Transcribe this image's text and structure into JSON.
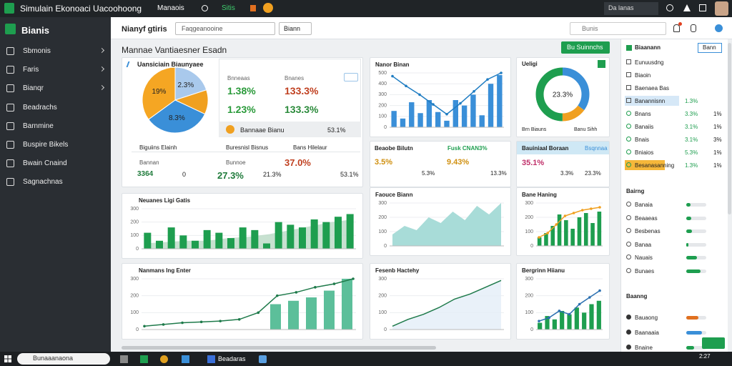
{
  "window": {
    "title": "Simulain Ekonoaci Uacoohoong",
    "tabs": [
      "Manaois",
      "Sitis"
    ],
    "user": "Da lanas"
  },
  "sidebar": {
    "brand": "Bianis",
    "items": [
      "Sbmonis",
      "Faris",
      "Bianqr",
      "Beadrachs",
      "Barnmine",
      "Buspire Bikels",
      "Bwain Cnaind",
      "Sagnachnas"
    ]
  },
  "toolbar": {
    "title": "Nianyf gtiris",
    "dropdown": "Faqgeanooine",
    "filter": "Biann",
    "search": "Bunis"
  },
  "section": {
    "title": "Mannae Vantiaesner Esadn",
    "button": "Bu Suinnchs"
  },
  "summary": {
    "title": "Uansiciain Biaunyaee",
    "pie": {
      "slices": [
        {
          "value": 20,
          "color": "#a9c9ec",
          "label": "2.3%"
        },
        {
          "value": 12,
          "color": "#f0a020"
        },
        {
          "value": 33,
          "color": "#3a8fd8",
          "label": "8.3%"
        },
        {
          "value": 35,
          "color": "#f5a623",
          "label": "19%"
        }
      ]
    },
    "stat_labels": [
      "Bnneaas",
      "Bnanes"
    ],
    "stats": [
      "1.38%",
      "133.3%",
      "1.23%",
      "133.3%"
    ],
    "footer_label": "Bannaae Bianu",
    "footer_value": "53.1%",
    "kpis": [
      {
        "label": "Biguiins Elainh",
        "sub": "Bannan",
        "values": [
          "3364",
          "0"
        ]
      },
      {
        "label": "Buresnisl Bisnus",
        "sub": "Bunnoe",
        "values": [
          "27.3%",
          "21.3%"
        ]
      },
      {
        "label": "Bans Hilelaur",
        "values": [
          "37.0%",
          "53.1%"
        ]
      }
    ]
  },
  "donut": {
    "title": "Ueligi",
    "slices": [
      {
        "value": 35,
        "color": "#3a8fd8"
      },
      {
        "value": 15,
        "color": "#f0a020"
      },
      {
        "value": 50,
        "color": "#1e9e4f"
      }
    ],
    "center": "23.3%",
    "legend": [
      "Brn Biauns",
      "Banu Sihh"
    ]
  },
  "panel4": {
    "title": "Beaobe Bilutn",
    "highlight": "Fusk CNAN3%",
    "values": [
      "3.5%",
      "9.43%",
      "5.3%",
      "13.3%"
    ]
  },
  "panel5": {
    "title": "Bauiniaal Boraan",
    "tag": "Bsqnnaa",
    "values": [
      "35.1%",
      "3.3%",
      "23.3%"
    ]
  },
  "charts": [
    {
      "title": "Nanor Binan",
      "type": "bar_line",
      "color": "#3a8fd8",
      "line_color": "#1e7cc2",
      "ylim": [
        0,
        500
      ],
      "yticks": [
        0,
        100,
        200,
        300,
        400,
        500
      ],
      "values": [
        150,
        80,
        230,
        130,
        250,
        140,
        60,
        250,
        200,
        300,
        110,
        400,
        480
      ],
      "line": [
        470,
        380,
        300,
        210,
        120,
        220,
        330,
        440,
        500
      ]
    },
    {
      "title": "Neuanes Ligi Gatis",
      "type": "bar_area",
      "color": "#1e9e4f",
      "fill": "#b9d9c4",
      "ylim": [
        0,
        300
      ],
      "yticks": [
        0,
        100,
        200,
        300
      ],
      "values": [
        120,
        60,
        160,
        100,
        60,
        140,
        120,
        80,
        160,
        140,
        40,
        200,
        180,
        160,
        220,
        200,
        240,
        260
      ],
      "line": [
        40,
        50,
        60,
        60,
        80,
        90,
        110,
        140,
        170,
        200,
        220
      ]
    },
    {
      "title": "Faouce Biann",
      "type": "area",
      "color": "#8fd0cc",
      "fill": "#a8dcd8",
      "ylim": [
        0,
        300
      ],
      "yticks": [
        0,
        100,
        200,
        300
      ],
      "line": [
        80,
        140,
        110,
        200,
        160,
        240,
        180,
        280,
        220,
        300
      ]
    },
    {
      "title": "Bane Haning",
      "type": "bar_line",
      "color": "#1e9e4f",
      "line_color": "#f0a020",
      "ylim": [
        0,
        300
      ],
      "yticks": [
        0,
        100,
        200,
        300
      ],
      "values": [
        60,
        90,
        140,
        220,
        180,
        120,
        200,
        230,
        160,
        240
      ],
      "line": [
        60,
        90,
        150,
        210,
        230,
        250,
        260,
        270
      ]
    },
    {
      "title": "Nanmans Ing Enter",
      "type": "line_bar",
      "color": "#5cbf9a",
      "line_color": "#1e7a4a",
      "ylim": [
        0,
        300
      ],
      "yticks": [
        0,
        100,
        200,
        300
      ],
      "values": [
        null,
        null,
        null,
        null,
        null,
        null,
        null,
        150,
        170,
        190,
        230,
        300
      ],
      "line": [
        20,
        30,
        40,
        45,
        50,
        60,
        100,
        200,
        220,
        250,
        270,
        300
      ]
    },
    {
      "title": "Fesenb Hactehy",
      "type": "line",
      "color": "#1e7a4a",
      "fill": "#e3eef8",
      "ylim": [
        0,
        300
      ],
      "yticks": [
        0,
        100,
        200,
        300
      ],
      "line": [
        20,
        60,
        90,
        130,
        180,
        210,
        250,
        290
      ]
    },
    {
      "title": "Bergrinn Hiianu",
      "type": "bar_line",
      "color": "#1e9e4f",
      "line_color": "#2a6fb0",
      "ylim": [
        0,
        300
      ],
      "yticks": [
        0,
        100,
        200,
        300
      ],
      "values": [
        40,
        80,
        60,
        110,
        90,
        130,
        100,
        150,
        170
      ],
      "line": [
        50,
        70,
        110,
        90,
        150,
        190,
        230
      ]
    }
  ],
  "right": {
    "title": "Biaanann",
    "filter": "Bann",
    "top_rows": [
      {
        "name": "Eunuusdng"
      },
      {
        "name": "Biaoin"
      },
      {
        "name": "Baenaea Bas"
      },
      {
        "name": "Banannisnn",
        "value": "1.3%"
      },
      {
        "name": "Bnans",
        "value": "3.3%",
        "amount": "1%"
      },
      {
        "name": "Banaiis",
        "value": "3.1%",
        "amount": "1%"
      },
      {
        "name": "Bnais",
        "value": "3.1%",
        "amount": "3%"
      },
      {
        "name": "Bniaios",
        "value": "5.3%",
        "amount": "1%"
      },
      {
        "name": "Besanasanning",
        "value": "1.3%",
        "amount": "1%"
      }
    ],
    "section2": "Bairng",
    "progress_rows": [
      {
        "name": "Banaia",
        "progress": 20
      },
      {
        "name": "Beaaeas",
        "progress": 25
      },
      {
        "name": "Besbenas",
        "progress": 30
      },
      {
        "name": "Banaa",
        "progress": 10
      },
      {
        "name": "Nauais",
        "progress": 55
      },
      {
        "name": "Bunaes",
        "progress": 70
      }
    ],
    "section3": "Baanng",
    "bottom_rows": [
      {
        "name": "Bauaong",
        "progress": 60
      },
      {
        "name": "Baanaaia",
        "progress": 80
      },
      {
        "name": "Bnaine",
        "progress": 40
      }
    ]
  },
  "taskbar": {
    "search": "Bunaaanaona",
    "app": "Beadaras",
    "time": "2:27"
  }
}
